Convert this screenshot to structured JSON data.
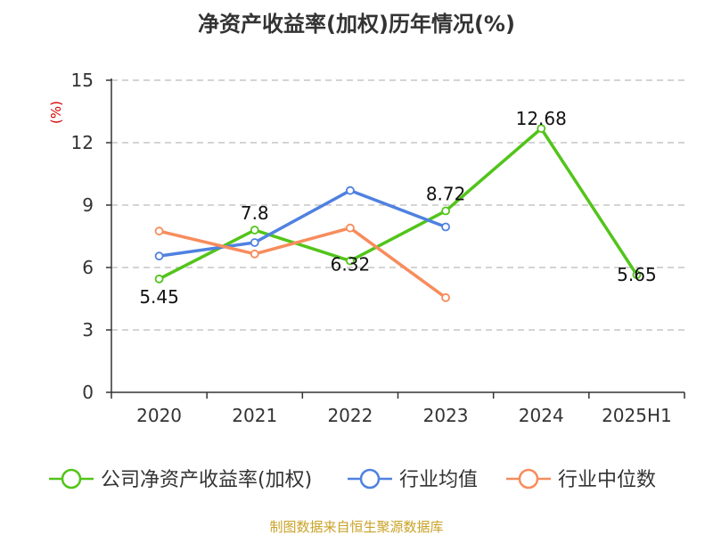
{
  "colors": {
    "roe": "#52c41a",
    "industry_avg": "#4f81e0",
    "industry_median": "#f78c5c",
    "unit": "#d40000",
    "source": "#c9a227",
    "grid": "#bbbbbb",
    "axis": "#333333"
  },
  "source_text": "制图数据来自恒生聚源数据库",
  "chart_data": {
    "type": "line",
    "title": "净资产收益率(加权)历年情况(%)",
    "ylabel": "(%)",
    "xlabel": "",
    "categories": [
      "2020",
      "2021",
      "2022",
      "2023",
      "2024",
      "2025H1"
    ],
    "ylim": [
      0,
      15
    ],
    "yticks": [
      0,
      3,
      6,
      9,
      12,
      15
    ],
    "grid": true,
    "legend_position": "bottom",
    "series": [
      {
        "name": "公司净资产收益率(加权)",
        "values": [
          5.45,
          7.8,
          6.32,
          8.72,
          12.68,
          5.65
        ],
        "labels": [
          "5.45",
          "7.8",
          "6.32",
          "8.72",
          "12.68",
          "5.65"
        ],
        "color": "#52c41a"
      },
      {
        "name": "行业均值",
        "values": [
          6.55,
          7.2,
          9.7,
          7.95,
          null,
          null
        ],
        "color": "#4f81e0"
      },
      {
        "name": "行业中位数",
        "values": [
          7.75,
          6.65,
          7.9,
          4.55,
          null,
          null
        ],
        "color": "#f78c5c"
      }
    ]
  }
}
